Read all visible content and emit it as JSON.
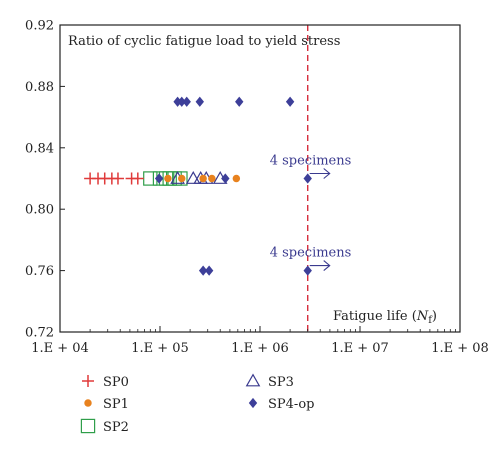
{
  "chart_data": {
    "type": "scatter",
    "title": "",
    "xlabel": "Fatigue life",
    "xlabel_symbol": "N",
    "xlabel_subscript": "f",
    "ylabel": "Ratio of cyclic fatigue load to yield stress",
    "x_scale": "log",
    "xlim": [
      10000,
      100000000
    ],
    "ylim": [
      0.72,
      0.92
    ],
    "x_ticks": [
      10000,
      100000,
      1000000,
      10000000,
      100000000
    ],
    "x_tick_labels": [
      "1.E + 04",
      "1.E + 05",
      "1.E + 06",
      "1.E + 07",
      "1.E + 08"
    ],
    "y_ticks": [
      0.72,
      0.76,
      0.8,
      0.84,
      0.88,
      0.92
    ],
    "y_tick_labels": [
      "0.72",
      "0.76",
      "0.80",
      "0.84",
      "0.88",
      "0.92"
    ],
    "grid": false,
    "legend_position": "bottom",
    "reference_line": {
      "x": 3000000,
      "style": "dashed",
      "color": "#d62d3c"
    },
    "annotations": [
      {
        "text": "4 specimens",
        "x": 3000000,
        "y": 0.82,
        "arrow": true
      },
      {
        "text": "4 specimens",
        "x": 3000000,
        "y": 0.76,
        "arrow": true
      }
    ],
    "series": [
      {
        "name": "SP0",
        "marker": "plus",
        "color": "#e03a3a",
        "points": [
          [
            20000,
            0.82
          ],
          [
            24000,
            0.82
          ],
          [
            28000,
            0.82
          ],
          [
            33000,
            0.82
          ],
          [
            38000,
            0.82
          ],
          [
            52000,
            0.82
          ],
          [
            60000,
            0.82
          ]
        ]
      },
      {
        "name": "SP1",
        "marker": "circle",
        "color": "#e8821e",
        "points": [
          [
            120000,
            0.82
          ],
          [
            165000,
            0.82
          ],
          [
            270000,
            0.82
          ],
          [
            330000,
            0.82
          ],
          [
            580000,
            0.82
          ]
        ]
      },
      {
        "name": "SP2",
        "marker": "square",
        "color": "#2f9e4a",
        "points": [
          [
            80000,
            0.82
          ],
          [
            100000,
            0.82
          ],
          [
            115000,
            0.82
          ],
          [
            125000,
            0.82
          ],
          [
            140000,
            0.82
          ],
          [
            160000,
            0.82
          ]
        ]
      },
      {
        "name": "SP3",
        "marker": "triangle",
        "color": "#3b3b8f",
        "points": [
          [
            150000,
            0.82
          ],
          [
            215000,
            0.82
          ],
          [
            255000,
            0.82
          ],
          [
            290000,
            0.82
          ],
          [
            400000,
            0.82
          ]
        ]
      },
      {
        "name": "SP4-op",
        "marker": "diamond",
        "color": "#3d3f99",
        "points": [
          [
            98000,
            0.82
          ],
          [
            450000,
            0.82
          ],
          [
            3000000,
            0.82
          ],
          [
            150000,
            0.87
          ],
          [
            165000,
            0.87
          ],
          [
            185000,
            0.87
          ],
          [
            250000,
            0.87
          ],
          [
            620000,
            0.87
          ],
          [
            2000000,
            0.87
          ],
          [
            270000,
            0.76
          ],
          [
            310000,
            0.76
          ],
          [
            3000000,
            0.76
          ]
        ]
      }
    ]
  }
}
